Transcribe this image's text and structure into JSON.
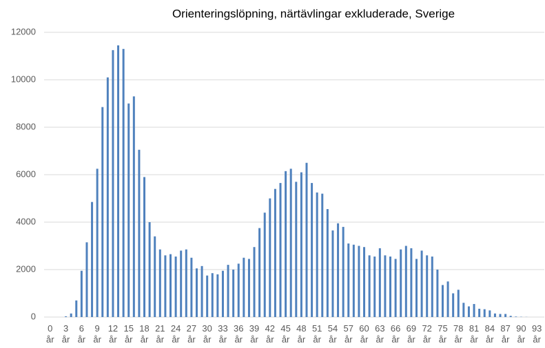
{
  "chart_data": {
    "type": "bar",
    "title": "Orienteringslöpning, närtävlingar exkluderade, Sverige",
    "categories": [
      "0\når",
      null,
      null,
      "3\når",
      null,
      null,
      "6\når",
      null,
      null,
      "9\når",
      null,
      null,
      "12\når",
      null,
      null,
      "15\når",
      null,
      null,
      "18\når",
      null,
      null,
      "21\når",
      null,
      null,
      "24\når",
      null,
      null,
      "27\når",
      null,
      null,
      "30\når",
      null,
      null,
      "33\når",
      null,
      null,
      "36\når",
      null,
      null,
      "39\når",
      null,
      null,
      "42\når",
      null,
      null,
      "45\når",
      null,
      null,
      "48\når",
      null,
      null,
      "51\når",
      null,
      null,
      "54\når",
      null,
      null,
      "57\når",
      null,
      null,
      "60\når",
      null,
      null,
      "63\når",
      null,
      null,
      "66\når",
      null,
      null,
      "69\når",
      null,
      null,
      "72\når",
      null,
      null,
      "75\når",
      null,
      null,
      "78\når",
      null,
      null,
      "81\når",
      null,
      null,
      "84\når",
      null,
      null,
      "87\når",
      null,
      null,
      "90\når",
      null,
      null,
      "93\når"
    ],
    "values": [
      0,
      0,
      0,
      30,
      150,
      700,
      1950,
      3150,
      4850,
      6250,
      8850,
      10100,
      11250,
      11450,
      11300,
      9000,
      9300,
      7050,
      5900,
      4000,
      3400,
      2850,
      2600,
      2650,
      2550,
      2800,
      2850,
      2500,
      2050,
      2150,
      1750,
      1850,
      1800,
      1950,
      2200,
      2000,
      2250,
      2500,
      2450,
      2950,
      3750,
      4400,
      5000,
      5400,
      5650,
      6150,
      6250,
      5700,
      6100,
      6500,
      5650,
      5250,
      5200,
      4550,
      3650,
      3950,
      3800,
      3100,
      3050,
      3000,
      2950,
      2600,
      2550,
      2900,
      2600,
      2550,
      2450,
      2850,
      3000,
      2900,
      2450,
      2800,
      2600,
      2550,
      2000,
      1350,
      1500,
      1000,
      1150,
      600,
      450,
      550,
      350,
      330,
      280,
      150,
      130,
      130,
      50,
      20,
      10,
      5,
      0,
      0
    ],
    "color": "#4f81bd",
    "ylim": [
      0,
      12000
    ],
    "yticks": [
      0,
      2000,
      4000,
      6000,
      8000,
      10000,
      12000
    ],
    "grid": true
  }
}
